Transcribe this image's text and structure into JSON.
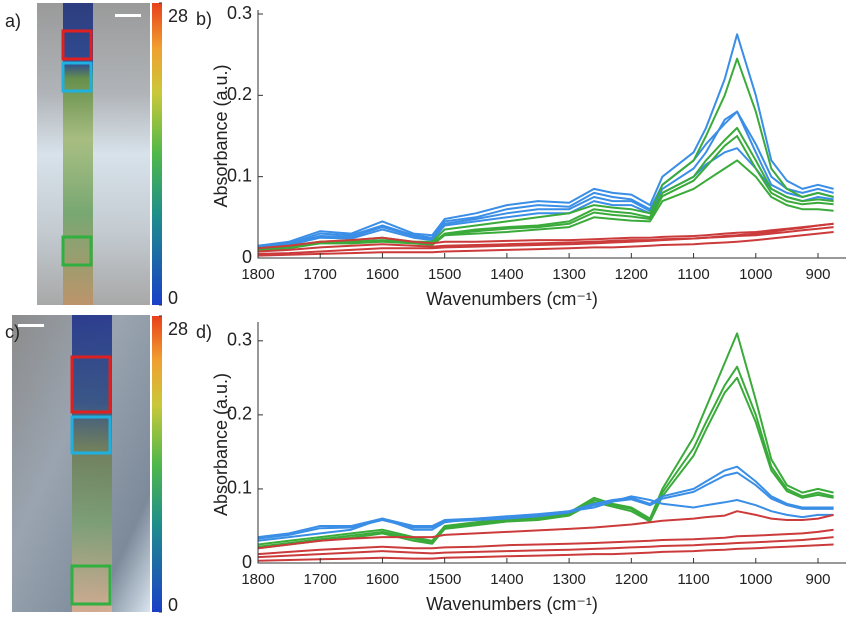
{
  "images": [
    {
      "label": "a)",
      "colorbar_ticks": [
        0,
        28
      ]
    },
    {
      "label": "c)",
      "colorbar_ticks": [
        0,
        28
      ]
    }
  ],
  "chart_data": [
    {
      "type": "line",
      "label": "b)",
      "xlabel": "Wavenumbers (cm⁻¹)",
      "ylabel": "Absorbance (a.u.)",
      "x": [
        1800,
        1750,
        1700,
        1650,
        1600,
        1550,
        1520,
        1500,
        1450,
        1400,
        1350,
        1300,
        1260,
        1230,
        1200,
        1170,
        1150,
        1100,
        1080,
        1050,
        1030,
        1000,
        975,
        950,
        925,
        900,
        875
      ],
      "xlim": [
        1800,
        855
      ],
      "xticks": [
        1800,
        1700,
        1600,
        1500,
        1400,
        1300,
        1200,
        1100,
        1000,
        900
      ],
      "ylim": [
        0,
        0.3
      ],
      "yticks": [
        0,
        0.1,
        0.2,
        0.3
      ],
      "series": [
        {
          "color": "#3a8ee6",
          "values": [
            0.015,
            0.02,
            0.033,
            0.03,
            0.045,
            0.03,
            0.028,
            0.048,
            0.055,
            0.065,
            0.07,
            0.068,
            0.085,
            0.08,
            0.078,
            0.065,
            0.1,
            0.13,
            0.16,
            0.22,
            0.275,
            0.2,
            0.12,
            0.095,
            0.085,
            0.09,
            0.085
          ]
        },
        {
          "color": "#3a8ee6",
          "values": [
            0.015,
            0.018,
            0.03,
            0.028,
            0.04,
            0.028,
            0.025,
            0.045,
            0.05,
            0.06,
            0.065,
            0.063,
            0.08,
            0.075,
            0.072,
            0.06,
            0.09,
            0.12,
            0.14,
            0.165,
            0.18,
            0.14,
            0.1,
            0.085,
            0.08,
            0.085,
            0.08
          ]
        },
        {
          "color": "#3a8ee6",
          "values": [
            0.012,
            0.016,
            0.025,
            0.024,
            0.035,
            0.025,
            0.022,
            0.04,
            0.045,
            0.05,
            0.055,
            0.055,
            0.07,
            0.065,
            0.065,
            0.055,
            0.08,
            0.1,
            0.115,
            0.13,
            0.135,
            0.11,
            0.085,
            0.075,
            0.07,
            0.075,
            0.072
          ]
        },
        {
          "color": "#3a8ee6",
          "values": [
            0.013,
            0.017,
            0.027,
            0.026,
            0.038,
            0.027,
            0.024,
            0.042,
            0.048,
            0.055,
            0.06,
            0.06,
            0.075,
            0.07,
            0.07,
            0.058,
            0.085,
            0.11,
            0.13,
            0.17,
            0.18,
            0.13,
            0.09,
            0.08,
            0.075,
            0.08,
            0.075
          ]
        },
        {
          "color": "#3aab3a",
          "values": [
            0.012,
            0.015,
            0.02,
            0.022,
            0.025,
            0.02,
            0.02,
            0.035,
            0.04,
            0.045,
            0.05,
            0.055,
            0.065,
            0.062,
            0.06,
            0.055,
            0.09,
            0.12,
            0.15,
            0.2,
            0.245,
            0.18,
            0.11,
            0.085,
            0.075,
            0.08,
            0.075
          ]
        },
        {
          "color": "#3aab3a",
          "values": [
            0.012,
            0.014,
            0.02,
            0.02,
            0.022,
            0.02,
            0.018,
            0.03,
            0.035,
            0.038,
            0.04,
            0.045,
            0.06,
            0.057,
            0.055,
            0.05,
            0.08,
            0.1,
            0.12,
            0.145,
            0.16,
            0.12,
            0.085,
            0.075,
            0.07,
            0.072,
            0.07
          ]
        },
        {
          "color": "#3aab3a",
          "values": [
            0.011,
            0.013,
            0.019,
            0.019,
            0.021,
            0.019,
            0.017,
            0.029,
            0.033,
            0.036,
            0.038,
            0.042,
            0.056,
            0.053,
            0.051,
            0.048,
            0.076,
            0.095,
            0.112,
            0.138,
            0.15,
            0.11,
            0.08,
            0.07,
            0.066,
            0.068,
            0.066
          ]
        },
        {
          "color": "#3aab3a",
          "values": [
            0.01,
            0.012,
            0.018,
            0.018,
            0.02,
            0.018,
            0.016,
            0.028,
            0.03,
            0.032,
            0.035,
            0.038,
            0.05,
            0.048,
            0.046,
            0.045,
            0.07,
            0.085,
            0.095,
            0.11,
            0.12,
            0.1,
            0.075,
            0.065,
            0.06,
            0.06,
            0.058
          ]
        },
        {
          "color": "#cc3b3b",
          "values": [
            0.005,
            0.006,
            0.008,
            0.01,
            0.012,
            0.012,
            0.012,
            0.013,
            0.014,
            0.015,
            0.016,
            0.017,
            0.018,
            0.019,
            0.02,
            0.021,
            0.022,
            0.024,
            0.025,
            0.027,
            0.028,
            0.03,
            0.032,
            0.035,
            0.037,
            0.04,
            0.042
          ]
        },
        {
          "color": "#cc3b3b",
          "values": [
            0.012,
            0.015,
            0.02,
            0.022,
            0.025,
            0.02,
            0.018,
            0.02,
            0.02,
            0.021,
            0.022,
            0.022,
            0.023,
            0.024,
            0.025,
            0.025,
            0.026,
            0.027,
            0.028,
            0.03,
            0.031,
            0.032,
            0.034,
            0.036,
            0.038,
            0.04,
            0.042
          ]
        },
        {
          "color": "#cc3b3b",
          "values": [
            0.003,
            0.004,
            0.005,
            0.006,
            0.007,
            0.007,
            0.007,
            0.008,
            0.009,
            0.01,
            0.011,
            0.012,
            0.013,
            0.013,
            0.014,
            0.015,
            0.016,
            0.017,
            0.018,
            0.019,
            0.02,
            0.022,
            0.024,
            0.026,
            0.028,
            0.03,
            0.032
          ]
        },
        {
          "color": "#cc3b3b",
          "values": [
            0.008,
            0.01,
            0.013,
            0.015,
            0.017,
            0.015,
            0.014,
            0.015,
            0.016,
            0.017,
            0.018,
            0.019,
            0.02,
            0.021,
            0.022,
            0.022,
            0.023,
            0.024,
            0.025,
            0.026,
            0.027,
            0.028,
            0.03,
            0.032,
            0.034,
            0.036,
            0.038
          ]
        }
      ]
    },
    {
      "type": "line",
      "label": "d)",
      "xlabel": "Wavenumbers (cm⁻¹)",
      "ylabel": "Absorbance (a.u.)",
      "x": [
        1800,
        1750,
        1700,
        1650,
        1600,
        1550,
        1520,
        1500,
        1450,
        1400,
        1350,
        1300,
        1260,
        1230,
        1200,
        1170,
        1150,
        1100,
        1080,
        1050,
        1030,
        1000,
        975,
        950,
        925,
        900,
        875
      ],
      "xlim": [
        1800,
        855
      ],
      "xticks": [
        1800,
        1700,
        1600,
        1500,
        1400,
        1300,
        1200,
        1100,
        1000,
        900
      ],
      "ylim": [
        0,
        0.32
      ],
      "yticks": [
        0,
        0.1,
        0.2,
        0.3
      ],
      "series": [
        {
          "color": "#3aab3a",
          "values": [
            0.025,
            0.03,
            0.035,
            0.04,
            0.045,
            0.035,
            0.03,
            0.05,
            0.055,
            0.06,
            0.062,
            0.068,
            0.088,
            0.08,
            0.075,
            0.06,
            0.1,
            0.17,
            0.21,
            0.27,
            0.31,
            0.22,
            0.14,
            0.105,
            0.095,
            0.1,
            0.095
          ]
        },
        {
          "color": "#3aab3a",
          "values": [
            0.022,
            0.027,
            0.032,
            0.037,
            0.042,
            0.033,
            0.028,
            0.048,
            0.053,
            0.058,
            0.06,
            0.066,
            0.085,
            0.078,
            0.073,
            0.058,
            0.095,
            0.155,
            0.19,
            0.24,
            0.265,
            0.2,
            0.13,
            0.1,
            0.09,
            0.095,
            0.09
          ]
        },
        {
          "color": "#3aab3a",
          "values": [
            0.02,
            0.025,
            0.03,
            0.034,
            0.04,
            0.03,
            0.026,
            0.046,
            0.051,
            0.056,
            0.058,
            0.064,
            0.082,
            0.076,
            0.07,
            0.056,
            0.09,
            0.145,
            0.18,
            0.23,
            0.25,
            0.19,
            0.125,
            0.097,
            0.088,
            0.092,
            0.088
          ]
        },
        {
          "color": "#3a8ee6",
          "values": [
            0.035,
            0.04,
            0.05,
            0.05,
            0.06,
            0.05,
            0.05,
            0.058,
            0.06,
            0.062,
            0.065,
            0.07,
            0.08,
            0.085,
            0.088,
            0.08,
            0.09,
            0.1,
            0.11,
            0.125,
            0.13,
            0.11,
            0.09,
            0.08,
            0.075,
            0.075,
            0.075
          ]
        },
        {
          "color": "#3a8ee6",
          "values": [
            0.033,
            0.038,
            0.047,
            0.048,
            0.058,
            0.048,
            0.048,
            0.056,
            0.058,
            0.06,
            0.063,
            0.068,
            0.078,
            0.083,
            0.086,
            0.078,
            0.087,
            0.096,
            0.105,
            0.118,
            0.122,
            0.105,
            0.087,
            0.078,
            0.073,
            0.073,
            0.073
          ]
        },
        {
          "color": "#3a8ee6",
          "values": [
            0.03,
            0.035,
            0.04,
            0.045,
            0.06,
            0.045,
            0.045,
            0.055,
            0.06,
            0.063,
            0.066,
            0.07,
            0.075,
            0.083,
            0.09,
            0.085,
            0.08,
            0.075,
            0.078,
            0.082,
            0.085,
            0.078,
            0.07,
            0.065,
            0.062,
            0.065,
            0.065
          ]
        },
        {
          "color": "#cc3b3b",
          "values": [
            0.02,
            0.025,
            0.03,
            0.033,
            0.035,
            0.035,
            0.035,
            0.038,
            0.04,
            0.042,
            0.044,
            0.046,
            0.048,
            0.05,
            0.052,
            0.055,
            0.057,
            0.06,
            0.062,
            0.064,
            0.07,
            0.065,
            0.06,
            0.058,
            0.058,
            0.06,
            0.065
          ]
        },
        {
          "color": "#cc3b3b",
          "values": [
            0.012,
            0.015,
            0.018,
            0.02,
            0.022,
            0.02,
            0.02,
            0.021,
            0.022,
            0.024,
            0.025,
            0.026,
            0.027,
            0.028,
            0.029,
            0.03,
            0.031,
            0.032,
            0.033,
            0.034,
            0.036,
            0.037,
            0.038,
            0.039,
            0.04,
            0.042,
            0.045
          ]
        },
        {
          "color": "#cc3b3b",
          "values": [
            0.008,
            0.01,
            0.012,
            0.014,
            0.016,
            0.014,
            0.013,
            0.014,
            0.015,
            0.016,
            0.017,
            0.018,
            0.019,
            0.02,
            0.021,
            0.022,
            0.023,
            0.024,
            0.025,
            0.026,
            0.027,
            0.028,
            0.029,
            0.03,
            0.031,
            0.033,
            0.035
          ]
        },
        {
          "color": "#cc3b3b",
          "values": [
            0.003,
            0.004,
            0.005,
            0.006,
            0.007,
            0.006,
            0.006,
            0.007,
            0.008,
            0.009,
            0.01,
            0.011,
            0.012,
            0.012,
            0.013,
            0.014,
            0.015,
            0.016,
            0.017,
            0.018,
            0.019,
            0.02,
            0.021,
            0.022,
            0.023,
            0.024,
            0.025
          ]
        }
      ]
    }
  ]
}
